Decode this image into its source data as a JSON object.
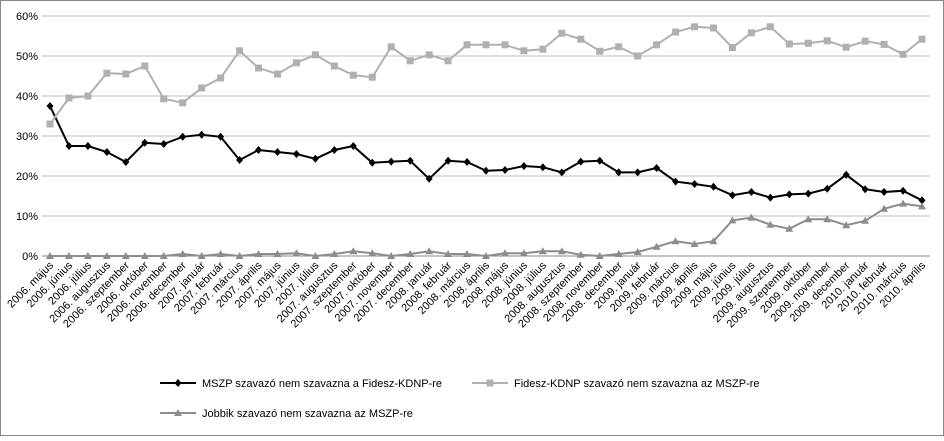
{
  "chart_data": {
    "type": "line",
    "categories": [
      "2006. május",
      "2006. június",
      "2006. július",
      "2006. augusztus",
      "2006. szeptember",
      "2006. október",
      "2006. november",
      "2006. december",
      "2007. január",
      "2007. február",
      "2007. március",
      "2007. április",
      "2007. május",
      "2007. június",
      "2007. július",
      "2007. augusztus",
      "2007. szeptember",
      "2007. október",
      "2007. november",
      "2007. december",
      "2008. január",
      "2008. február",
      "2008. március",
      "2008. április",
      "2008. május",
      "2008. június",
      "2008. július",
      "2008. augusztus",
      "2008. szeptember",
      "2008. november",
      "2008. december",
      "2009. január",
      "2009. február",
      "2009. március",
      "2009. április",
      "2009. május",
      "2009. június",
      "2009. július",
      "2009. augusztus",
      "2009. szeptember",
      "2009. október",
      "2009. november",
      "2009. december",
      "2010. január",
      "2010. február",
      "2010. március",
      "2010. április"
    ],
    "series": [
      {
        "name": "MSZP szavazó nem szavazna a Fidesz-KDNP-re",
        "color": "#000000",
        "marker": "diamond",
        "values": [
          37.5,
          27.5,
          27.5,
          26,
          23.5,
          28.3,
          28,
          29.8,
          30.3,
          29.8,
          24,
          26.5,
          26,
          25.5,
          24.3,
          26.5,
          27.5,
          23.3,
          23.6,
          23.8,
          19.3,
          23.8,
          23.5,
          21.3,
          21.5,
          22.5,
          22.2,
          20.9,
          23.6,
          23.8,
          20.9,
          20.9,
          22,
          18.6,
          18,
          17.3,
          15.2,
          16,
          14.6,
          15.4,
          15.6,
          16.8,
          20.3,
          16.7,
          16,
          16.3,
          13.9
        ]
      },
      {
        "name": "Fidesz-KDNP szavazó nem szavazna az MSZP-re",
        "color": "#b0b0b0",
        "marker": "square",
        "values": [
          33,
          39.5,
          40,
          45.7,
          45.5,
          47.5,
          39.3,
          38.3,
          42,
          44.5,
          51.3,
          47,
          45.5,
          48.3,
          50.3,
          47.5,
          45.2,
          44.7,
          52.3,
          48.8,
          50.3,
          48.8,
          52.8,
          52.8,
          52.8,
          51.3,
          51.7,
          55.7,
          54.2,
          51.2,
          52.3,
          50,
          52.8,
          56,
          57.3,
          57,
          52.1,
          55.8,
          57.3,
          53,
          53.2,
          53.8,
          52.2,
          53.7,
          52.9,
          50.4,
          54.2
        ]
      },
      {
        "name": "Jobbik szavazó nem szavazna az MSZP-re",
        "color": "#8c8c8c",
        "marker": "triangle",
        "values": [
          0,
          0,
          0,
          0,
          0,
          0,
          0,
          0.5,
          0,
          0.5,
          0,
          0.5,
          0.5,
          0.7,
          0,
          0.5,
          1.2,
          0.7,
          0,
          0.5,
          1.2,
          0.5,
          0.5,
          0,
          0.7,
          0.7,
          1.2,
          1.2,
          0.3,
          0,
          0.5,
          1,
          2.3,
          3.7,
          3,
          3.7,
          8.9,
          9.6,
          7.8,
          6.8,
          9.2,
          9.2,
          7.7,
          8.8,
          11.8,
          13.1,
          12.4
        ]
      }
    ],
    "ylim": [
      0,
      60
    ],
    "yticks": [
      {
        "value": 0,
        "label": "0%"
      },
      {
        "value": 10,
        "label": "10%"
      },
      {
        "value": 20,
        "label": "20%"
      },
      {
        "value": 30,
        "label": "30%"
      },
      {
        "value": 40,
        "label": "40%"
      },
      {
        "value": 50,
        "label": "50%"
      },
      {
        "value": 60,
        "label": "60%"
      }
    ],
    "grid": true
  }
}
